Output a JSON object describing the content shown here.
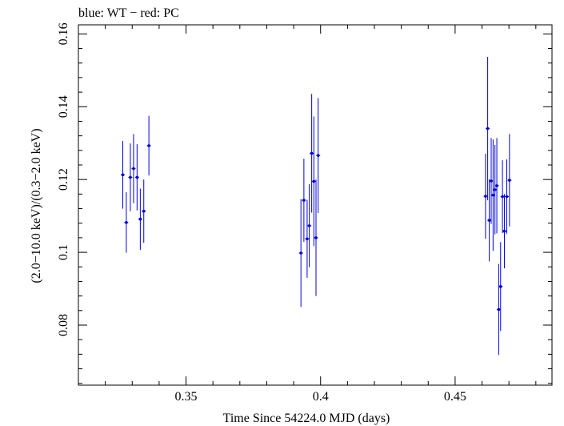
{
  "chart_data": {
    "type": "scatter",
    "title": "blue: WT − red: PC",
    "xlabel": "Time Since 54224.0 MJD (days)",
    "ylabel": "(2.0−10.0 keV)/(0.3−2.0 keV)",
    "xlim": [
      0.31,
      0.486
    ],
    "ylim": [
      0.0635,
      0.1625
    ],
    "x_ticks": [
      0.35,
      0.4,
      0.45
    ],
    "x_tick_labels": [
      "0.35",
      "0.4",
      "0.45"
    ],
    "y_ticks": [
      0.08,
      0.1,
      0.12,
      0.14,
      0.16
    ],
    "y_tick_labels": [
      "0.08",
      "0.1",
      "0.12",
      "0.14",
      "0.16"
    ],
    "grid": false,
    "color": "#0000dd",
    "series": [
      {
        "points": [
          {
            "x": 0.3265,
            "y": 0.1213,
            "yerr": 0.0093
          },
          {
            "x": 0.3278,
            "y": 0.1082,
            "yerr": 0.0083
          },
          {
            "x": 0.3293,
            "y": 0.1206,
            "yerr": 0.0093
          },
          {
            "x": 0.3305,
            "y": 0.123,
            "yerr": 0.0095
          },
          {
            "x": 0.3318,
            "y": 0.1206,
            "yerr": 0.0091
          },
          {
            "x": 0.333,
            "y": 0.1091,
            "yerr": 0.0084
          },
          {
            "x": 0.3343,
            "y": 0.1113,
            "yerr": 0.0087
          },
          {
            "x": 0.3362,
            "y": 0.1293,
            "yerr": 0.0082
          },
          {
            "x": 0.3927,
            "y": 0.0998,
            "yerr": 0.0148
          },
          {
            "x": 0.3938,
            "y": 0.1143,
            "yerr": 0.0114
          },
          {
            "x": 0.395,
            "y": 0.1037,
            "yerr": 0.0107
          },
          {
            "x": 0.3958,
            "y": 0.1073,
            "yerr": 0.0114
          },
          {
            "x": 0.3967,
            "y": 0.1272,
            "yerr": 0.0163
          },
          {
            "x": 0.3975,
            "y": 0.1195,
            "yerr": 0.0178
          },
          {
            "x": 0.3983,
            "y": 0.104,
            "yerr": 0.016
          },
          {
            "x": 0.3991,
            "y": 0.1266,
            "yerr": 0.0158
          },
          {
            "x": 0.4613,
            "y": 0.1154,
            "yerr": 0.0117
          },
          {
            "x": 0.4621,
            "y": 0.134,
            "yerr": 0.0197
          },
          {
            "x": 0.4627,
            "y": 0.1088,
            "yerr": 0.0113
          },
          {
            "x": 0.4634,
            "y": 0.1196,
            "yerr": 0.0118
          },
          {
            "x": 0.4641,
            "y": 0.1157,
            "yerr": 0.0153
          },
          {
            "x": 0.4648,
            "y": 0.1172,
            "yerr": 0.0123
          },
          {
            "x": 0.4655,
            "y": 0.1183,
            "yerr": 0.0131
          },
          {
            "x": 0.4662,
            "y": 0.0843,
            "yerr": 0.0125
          },
          {
            "x": 0.4669,
            "y": 0.0906,
            "yerr": 0.0122
          },
          {
            "x": 0.4676,
            "y": 0.1153,
            "yerr": 0.01
          },
          {
            "x": 0.4683,
            "y": 0.1058,
            "yerr": 0.0102
          },
          {
            "x": 0.4692,
            "y": 0.1153,
            "yerr": 0.0102
          },
          {
            "x": 0.4702,
            "y": 0.1198,
            "yerr": 0.0127
          }
        ]
      }
    ]
  }
}
